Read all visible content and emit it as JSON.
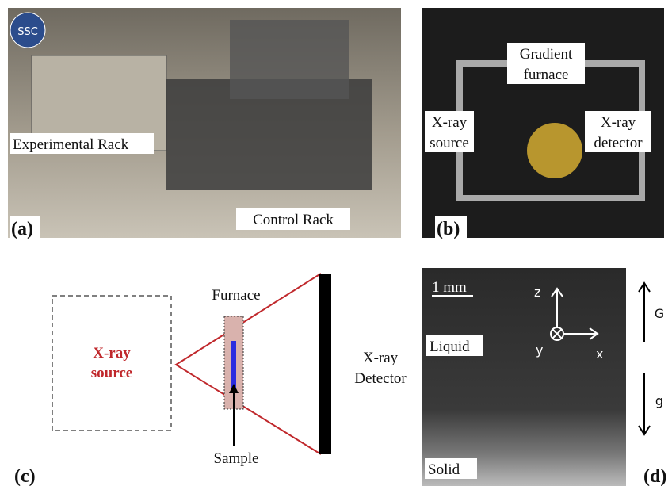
{
  "panels": [
    {
      "tag": "(a)",
      "labels": [
        "Experimental Rack",
        "Control Rack"
      ],
      "logo": "SSC"
    },
    {
      "tag": "(b)",
      "labels": [
        "Gradient",
        "furnace",
        "X-ray",
        "source",
        "X-ray",
        "detector"
      ]
    },
    {
      "tag": "(c)",
      "source": [
        "X-ray",
        "source"
      ],
      "labels": [
        "Furnace",
        "Sample",
        "X-ray",
        "Detector"
      ]
    },
    {
      "tag": "(d)",
      "labels": [
        "1 mm",
        "Liquid",
        "Solid",
        "z",
        "y",
        "x",
        "G",
        "g"
      ]
    }
  ]
}
